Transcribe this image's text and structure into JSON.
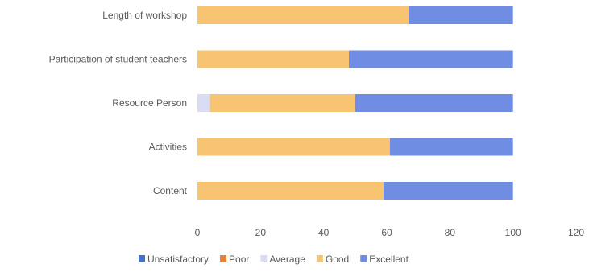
{
  "chart_data": {
    "type": "bar",
    "orientation": "horizontal",
    "stacked": true,
    "categories": [
      "Length of workshop",
      "Participation of student teachers",
      "Resource Person",
      "Activities",
      "Content"
    ],
    "series": [
      {
        "name": "Unsatisfactory",
        "color": "#4472c4",
        "values": [
          0,
          0,
          0,
          0,
          0
        ]
      },
      {
        "name": "Poor",
        "color": "#ed7d31",
        "values": [
          0,
          0,
          0,
          0,
          0
        ]
      },
      {
        "name": "Average",
        "color": "#d9dcf2",
        "values": [
          0,
          0,
          4,
          0,
          0
        ]
      },
      {
        "name": "Good",
        "color": "#f8c471",
        "values": [
          67,
          48,
          46,
          61,
          59
        ]
      },
      {
        "name": "Excellent",
        "color": "#6f8ee3",
        "values": [
          33,
          52,
          50,
          39,
          41
        ]
      }
    ],
    "xlim": [
      0,
      120
    ],
    "xticks": [
      0,
      20,
      40,
      60,
      80,
      100,
      120
    ],
    "grid": false,
    "legend_position": "bottom"
  }
}
